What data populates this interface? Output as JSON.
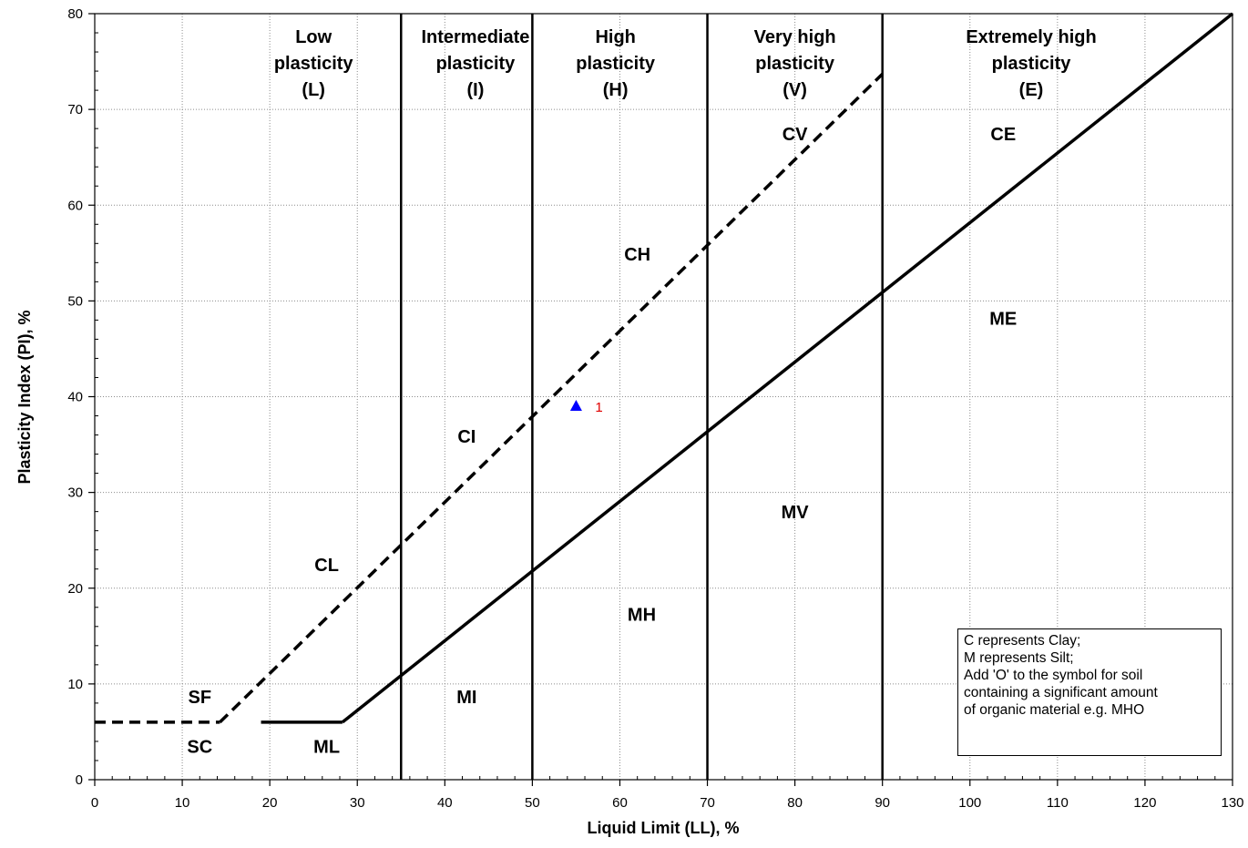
{
  "chart_data": {
    "type": "line",
    "xlabel": "Liquid Limit (LL), %",
    "ylabel": "Plasticity Index (PI), %",
    "xlim": [
      0,
      130
    ],
    "ylim": [
      0,
      80
    ],
    "x_ticks": [
      "0",
      "10",
      "20",
      "30",
      "40",
      "50",
      "60",
      "70",
      "80",
      "90",
      "100",
      "110",
      "120",
      "130"
    ],
    "y_ticks": [
      "0",
      "10",
      "20",
      "30",
      "40",
      "50",
      "60",
      "70",
      "80"
    ],
    "grid": true,
    "zone_boundaries_ll": [
      35,
      50,
      70,
      90
    ],
    "zones": [
      {
        "lines": [
          "Low",
          "plasticity",
          "(L)"
        ],
        "x": 25
      },
      {
        "lines": [
          "Intermediate",
          "plasticity",
          "(I)"
        ],
        "x": 43.5
      },
      {
        "lines": [
          "High",
          "plasticity",
          "(H)"
        ],
        "x": 59.5
      },
      {
        "lines": [
          "Very high",
          "plasticity",
          "(V)"
        ],
        "x": 80
      },
      {
        "lines": [
          "Extremely high",
          "plasticity",
          "(E)"
        ],
        "x": 107
      }
    ],
    "series": [
      {
        "style": "dashed",
        "x": [
          0,
          14.3
        ],
        "y": [
          6,
          6
        ]
      },
      {
        "style": "dashed",
        "x": [
          14.3,
          90
        ],
        "y": [
          6,
          73.7
        ]
      },
      {
        "style": "solid",
        "x": [
          19,
          28.3
        ],
        "y": [
          6,
          6
        ]
      },
      {
        "style": "solid",
        "x": [
          28.3,
          130
        ],
        "y": [
          6,
          80
        ]
      }
    ],
    "region_labels": [
      {
        "text": "SF",
        "x": 12,
        "y": 8
      },
      {
        "text": "SC",
        "x": 12,
        "y": 2.8
      },
      {
        "text": "ML",
        "x": 26.5,
        "y": 2.8
      },
      {
        "text": "CL",
        "x": 26.5,
        "y": 21.8
      },
      {
        "text": "MI",
        "x": 42.5,
        "y": 8
      },
      {
        "text": "CI",
        "x": 42.5,
        "y": 35.2
      },
      {
        "text": "MH",
        "x": 62.5,
        "y": 16.6
      },
      {
        "text": "CH",
        "x": 62,
        "y": 54.2
      },
      {
        "text": "MV",
        "x": 80,
        "y": 27.3
      },
      {
        "text": "CV",
        "x": 80,
        "y": 66.8
      },
      {
        "text": "ME",
        "x": 103.8,
        "y": 47.5
      },
      {
        "text": "CE",
        "x": 103.8,
        "y": 66.8
      }
    ],
    "points": [
      {
        "x": 55,
        "y": 39,
        "label": "1",
        "marker": "triangle",
        "color": "#0000ff"
      }
    ],
    "legend_lines": [
      "C represents Clay;",
      "M represents Silt;",
      "Add 'O' to the symbol for soil",
      "containing a significant amount",
      "of organic material e.g. MHO"
    ]
  }
}
